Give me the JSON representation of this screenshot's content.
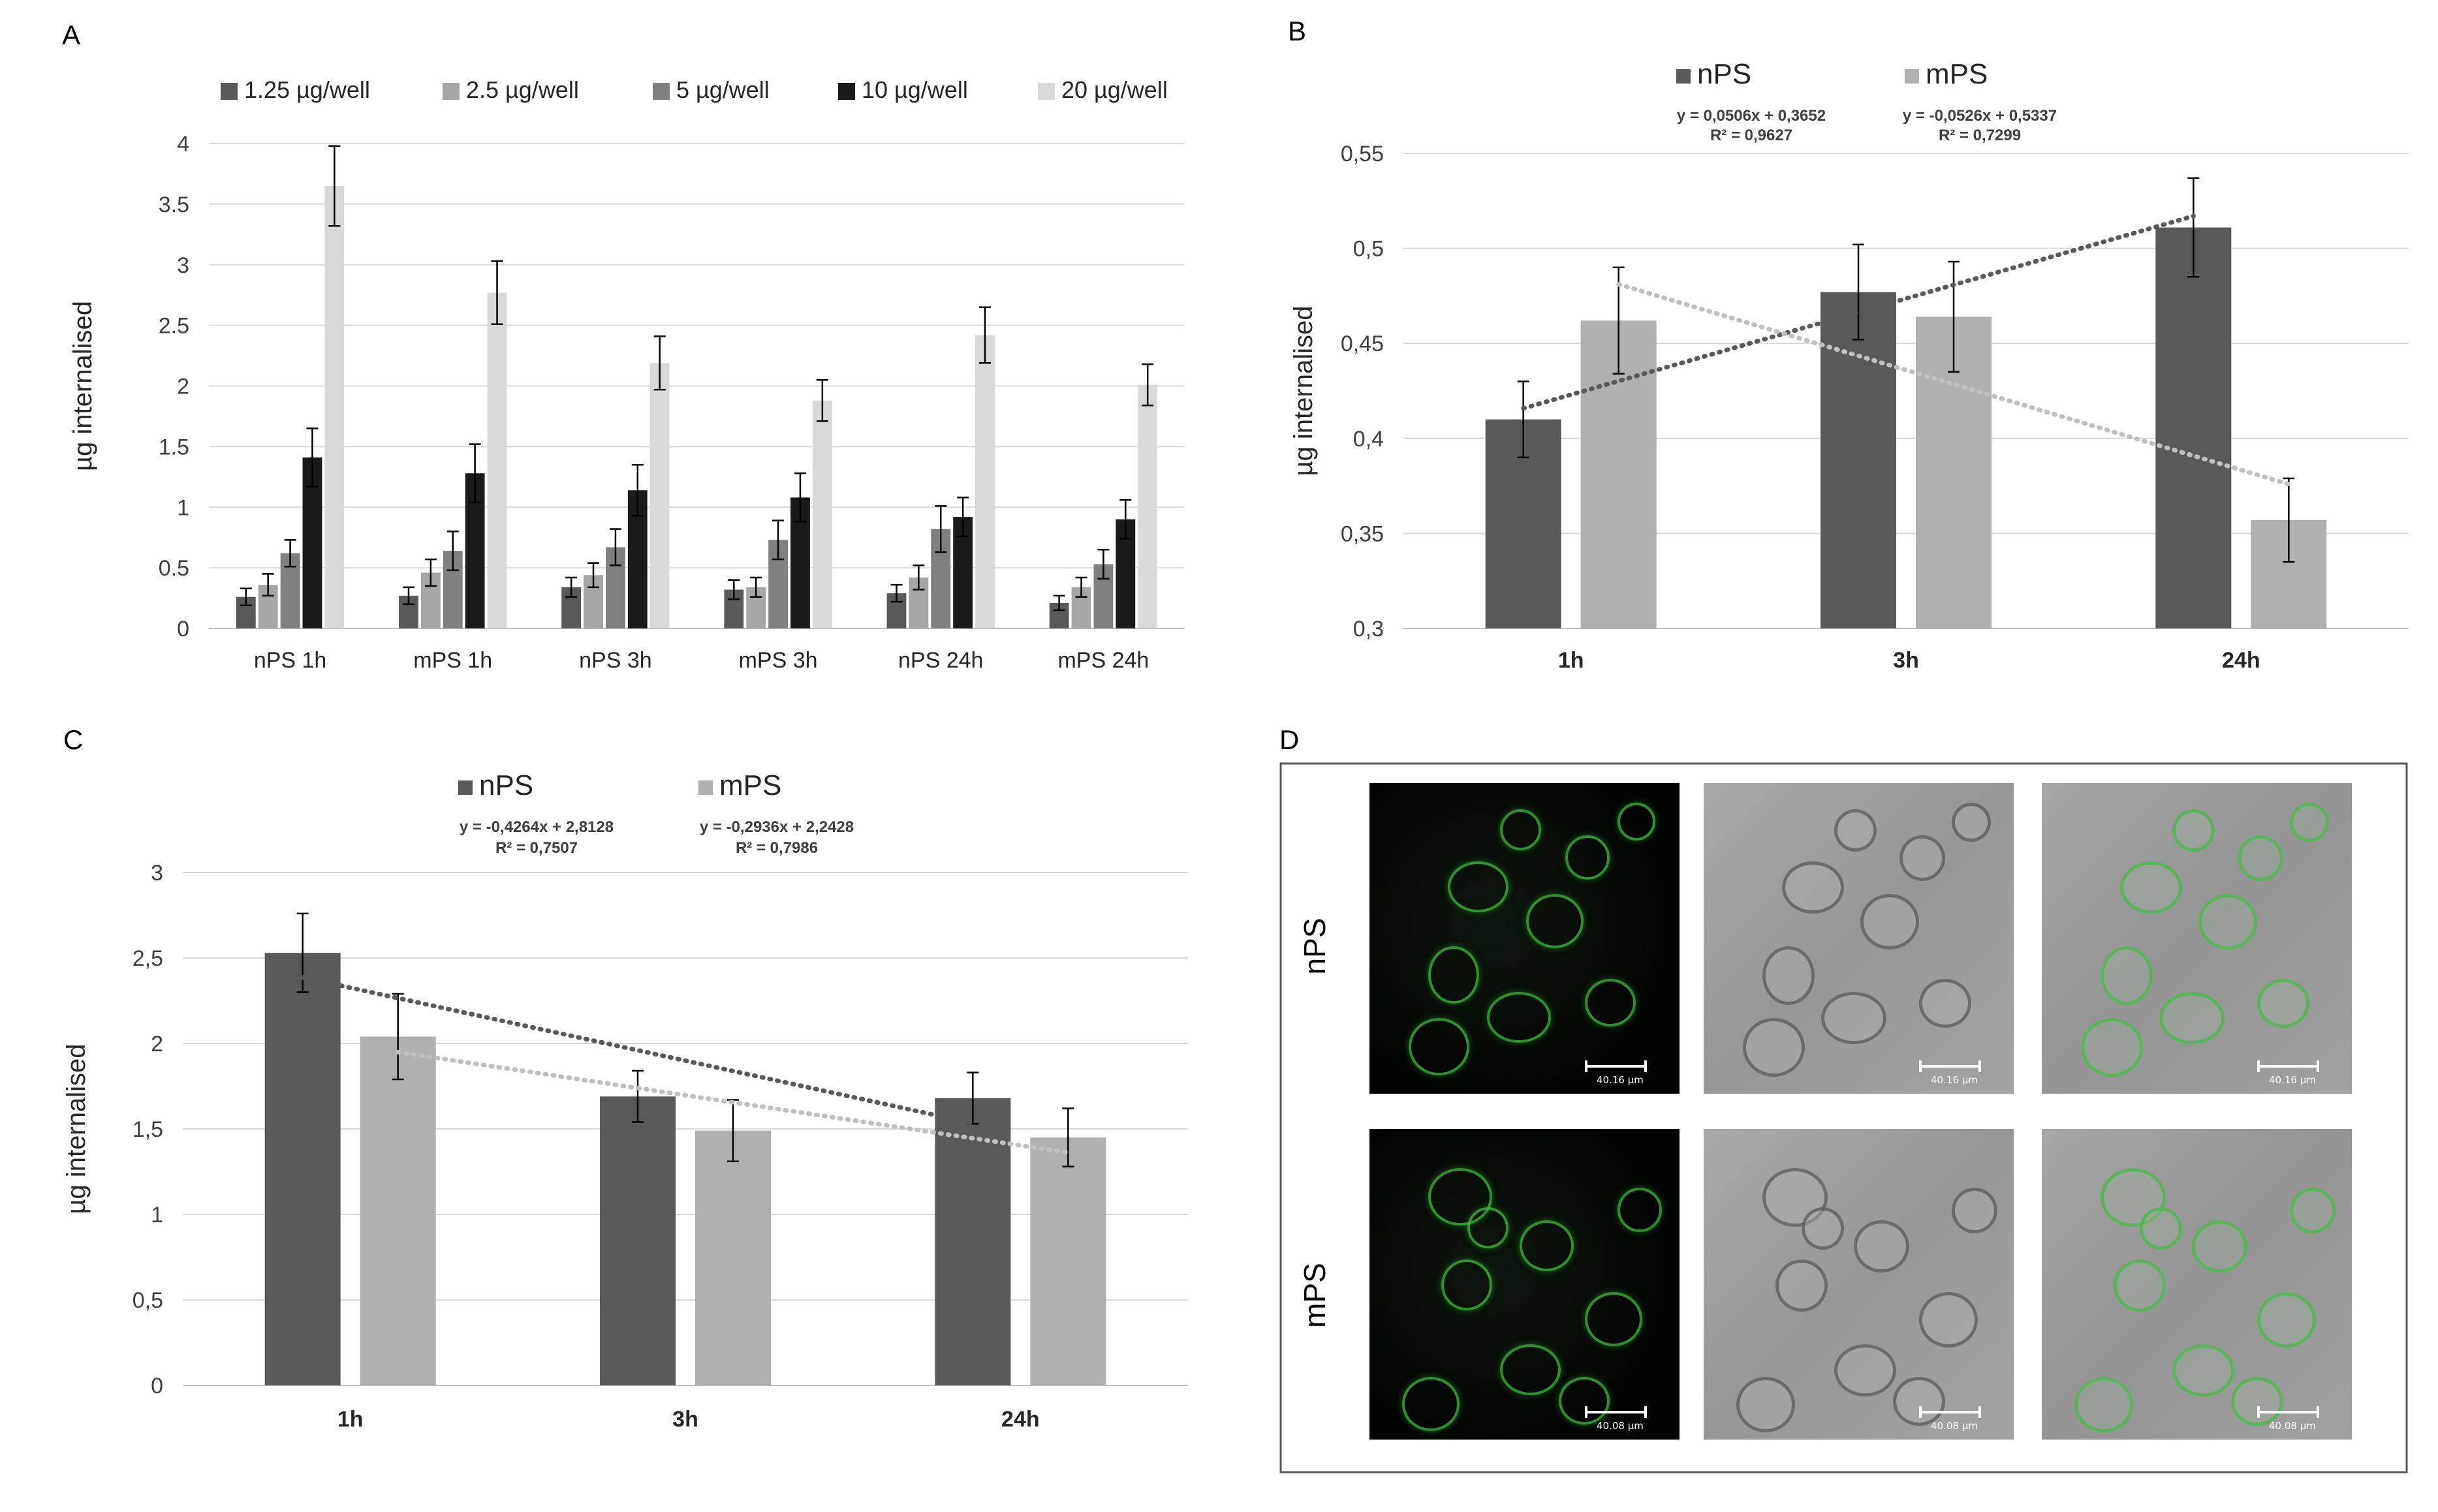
{
  "panels": {
    "a": {
      "letter": "A"
    },
    "b": {
      "letter": "B"
    },
    "c": {
      "letter": "C"
    },
    "d": {
      "letter": "D",
      "row_labels": [
        "nPS",
        "mPS"
      ],
      "scale_labels": [
        "40.16 μm",
        "40.08 μm"
      ]
    }
  },
  "chart_data": [
    {
      "id": "A",
      "type": "bar",
      "title": "",
      "xlabel": "",
      "ylabel": "µg internalised",
      "ylim": [
        0,
        4
      ],
      "yticks": [
        "0",
        "0.5",
        "1",
        "1.5",
        "2",
        "2.5",
        "3",
        "3.5",
        "4"
      ],
      "grid": true,
      "legend_position": "top",
      "categories": [
        "nPS 1h",
        "mPS 1h",
        "nPS 3h",
        "mPS 3h",
        "nPS 24h",
        "mPS 24h"
      ],
      "series": [
        {
          "name": "1.25 µg/well",
          "color": "#595959",
          "values": [
            0.26,
            0.27,
            0.34,
            0.32,
            0.29,
            0.21
          ],
          "errors": [
            0.07,
            0.07,
            0.08,
            0.08,
            0.07,
            0.06
          ]
        },
        {
          "name": "2.5 µg/well",
          "color": "#a6a6a6",
          "values": [
            0.36,
            0.46,
            0.44,
            0.34,
            0.42,
            0.34
          ],
          "errors": [
            0.09,
            0.11,
            0.1,
            0.08,
            0.1,
            0.08
          ]
        },
        {
          "name": "5 µg/well",
          "color": "#808080",
          "values": [
            0.62,
            0.64,
            0.67,
            0.73,
            0.82,
            0.53
          ],
          "errors": [
            0.11,
            0.16,
            0.15,
            0.16,
            0.19,
            0.12
          ]
        },
        {
          "name": "10 µg/well",
          "color": "#1a1a1a",
          "values": [
            1.41,
            1.28,
            1.14,
            1.08,
            0.92,
            0.9
          ],
          "errors": [
            0.24,
            0.24,
            0.21,
            0.2,
            0.16,
            0.16
          ]
        },
        {
          "name": "20 µg/well",
          "color": "#d9d9d9",
          "values": [
            3.65,
            2.77,
            2.19,
            1.88,
            2.42,
            2.01
          ],
          "errors": [
            0.33,
            0.26,
            0.22,
            0.17,
            0.23,
            0.17
          ]
        }
      ]
    },
    {
      "id": "B",
      "type": "bar",
      "title": "",
      "xlabel": "",
      "ylabel": "µg internalised",
      "ylim": [
        0.3,
        0.55
      ],
      "yticks": [
        "0,3",
        "0,35",
        "0,4",
        "0,45",
        "0,5",
        "0,55"
      ],
      "grid": true,
      "legend_position": "top",
      "categories": [
        "1h",
        "3h",
        "24h"
      ],
      "series": [
        {
          "name": "nPS",
          "color": "#595959",
          "values": [
            0.41,
            0.477,
            0.511
          ],
          "errors": [
            0.02,
            0.025,
            0.026
          ],
          "trendline": {
            "color": "#595959",
            "y_start": 0.4158,
            "y_end": 0.517
          },
          "equation": "y = 0,0506x + 0,3652",
          "r2": "R² = 0,9627"
        },
        {
          "name": "mPS",
          "color": "#b0b0b0",
          "values": [
            0.462,
            0.464,
            0.357
          ],
          "errors": [
            0.028,
            0.029,
            0.022
          ],
          "trendline": {
            "color": "#c0c0c0",
            "y_start": 0.4811,
            "y_end": 0.3759
          },
          "equation": "y = -0,0526x + 0,5337",
          "r2": "R² = 0,7299"
        }
      ]
    },
    {
      "id": "C",
      "type": "bar",
      "title": "",
      "xlabel": "",
      "ylabel": "µg internalised",
      "ylim": [
        0,
        3
      ],
      "yticks": [
        "0",
        "0,5",
        "1",
        "1,5",
        "2",
        "2,5",
        "3"
      ],
      "grid": true,
      "legend_position": "top",
      "categories": [
        "1h",
        "3h",
        "24h"
      ],
      "series": [
        {
          "name": "nPS",
          "color": "#595959",
          "values": [
            2.53,
            1.69,
            1.68
          ],
          "errors": [
            0.23,
            0.15,
            0.15
          ],
          "trendline": {
            "color": "#595959",
            "y_start": 2.3864,
            "y_end": 1.5336
          },
          "equation": "y = -0,4264x + 2,8128",
          "r2": "R² = 0,7507"
        },
        {
          "name": "mPS",
          "color": "#b0b0b0",
          "values": [
            2.04,
            1.49,
            1.45
          ],
          "errors": [
            0.25,
            0.18,
            0.17
          ],
          "trendline": {
            "color": "#c0c0c0",
            "y_start": 1.9492,
            "y_end": 1.362
          },
          "equation": "y = -0,2936x + 2,2428",
          "r2": "R² = 0,7986"
        }
      ]
    }
  ]
}
